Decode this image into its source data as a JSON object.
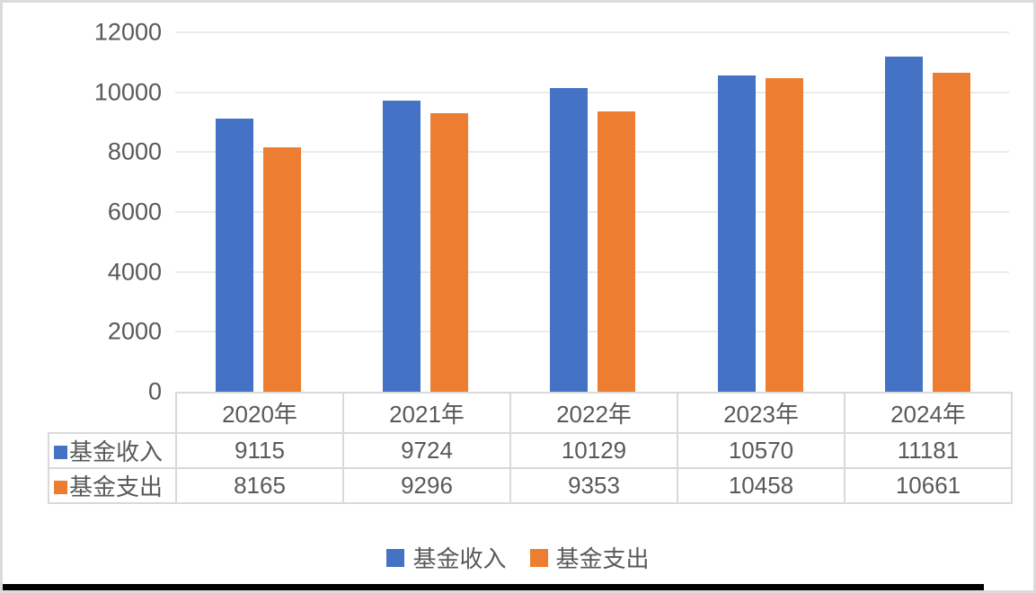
{
  "chart_data": {
    "type": "bar",
    "title": "",
    "categories": [
      "2020年",
      "2021年",
      "2022年",
      "2023年",
      "2024年"
    ],
    "series": [
      {
        "name": "基金收入",
        "color": "#4472C4",
        "values": [
          9115,
          9724,
          10129,
          10570,
          11181
        ]
      },
      {
        "name": "基金支出",
        "color": "#ED7D31",
        "values": [
          8165,
          9296,
          9353,
          10458,
          10661
        ]
      }
    ],
    "ylim": [
      0,
      12000
    ],
    "y_ticks": [
      0,
      2000,
      4000,
      6000,
      8000,
      10000,
      12000
    ],
    "y_tick_labels": [
      "0",
      "2000",
      "4000",
      "6000",
      "8000",
      "10000",
      "12000"
    ],
    "xlabel": "",
    "ylabel": "",
    "grid": "horizontal-only",
    "legend_position": "bottom",
    "has_data_table": true,
    "data_table_legend_keys": true
  },
  "palette": {
    "series_blue": "#4472C4",
    "series_orange": "#ED7D31",
    "text": "#595959",
    "gridline": "#EBEBEB",
    "table_border": "#D9D9D9",
    "frame_border": "#DBDBDB",
    "bottom_strip": "#000000",
    "background": "#FFFFFF"
  }
}
